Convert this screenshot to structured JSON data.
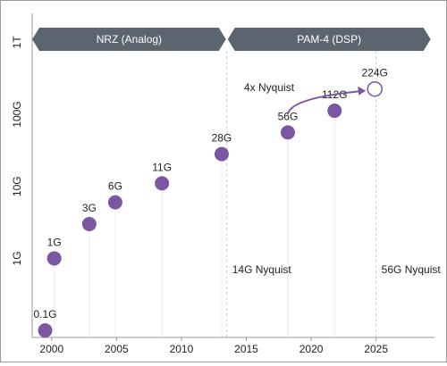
{
  "chart_data": {
    "type": "scatter",
    "title": "",
    "xlabel": "",
    "ylabel": "",
    "x_ticks": [
      "2000",
      "2005",
      "2010",
      "2015",
      "2020",
      "2025"
    ],
    "y_ticks": [
      "1G",
      "10G",
      "100G",
      "1T"
    ],
    "x_range": [
      1998.5,
      2029.5
    ],
    "y_scale": "log",
    "y_range_gbps": [
      0.08,
      2000
    ],
    "points": [
      {
        "x": 1999.5,
        "y": 0.1,
        "label": "0.1G"
      },
      {
        "x": 2000.2,
        "y": 1,
        "label": "1G"
      },
      {
        "x": 2002.9,
        "y": 3,
        "label": "3G"
      },
      {
        "x": 2004.9,
        "y": 6,
        "label": "6G"
      },
      {
        "x": 2008.5,
        "y": 11,
        "label": "11G"
      },
      {
        "x": 2013.1,
        "y": 28,
        "label": "28G"
      },
      {
        "x": 2018.2,
        "y": 56,
        "label": "56G"
      },
      {
        "x": 2021.8,
        "y": 112,
        "label": "112G"
      },
      {
        "x": 2024.9,
        "y": 224,
        "label": "224G",
        "hollow": true
      }
    ],
    "bands": [
      {
        "label": "NRZ (Analog)",
        "from": 1998.5,
        "to": 2013.5
      },
      {
        "label": "PAM-4 (DSP)",
        "from": 2013.5,
        "to": 2029.2
      }
    ],
    "vertical_lines": [
      {
        "x": 2013.5,
        "label": "14G Nyquist"
      },
      {
        "x": 2025,
        "label": "56G Nyquist"
      }
    ],
    "annotation": {
      "label": "4x Nyquist",
      "from_point": "56G",
      "to_point": "224G"
    },
    "colors": {
      "point": "#7b56a3",
      "band": "#5c6470",
      "axis": "#9a9a9a",
      "dashed_line": "#c8c8c8",
      "shade": "#f5f5f5"
    }
  }
}
